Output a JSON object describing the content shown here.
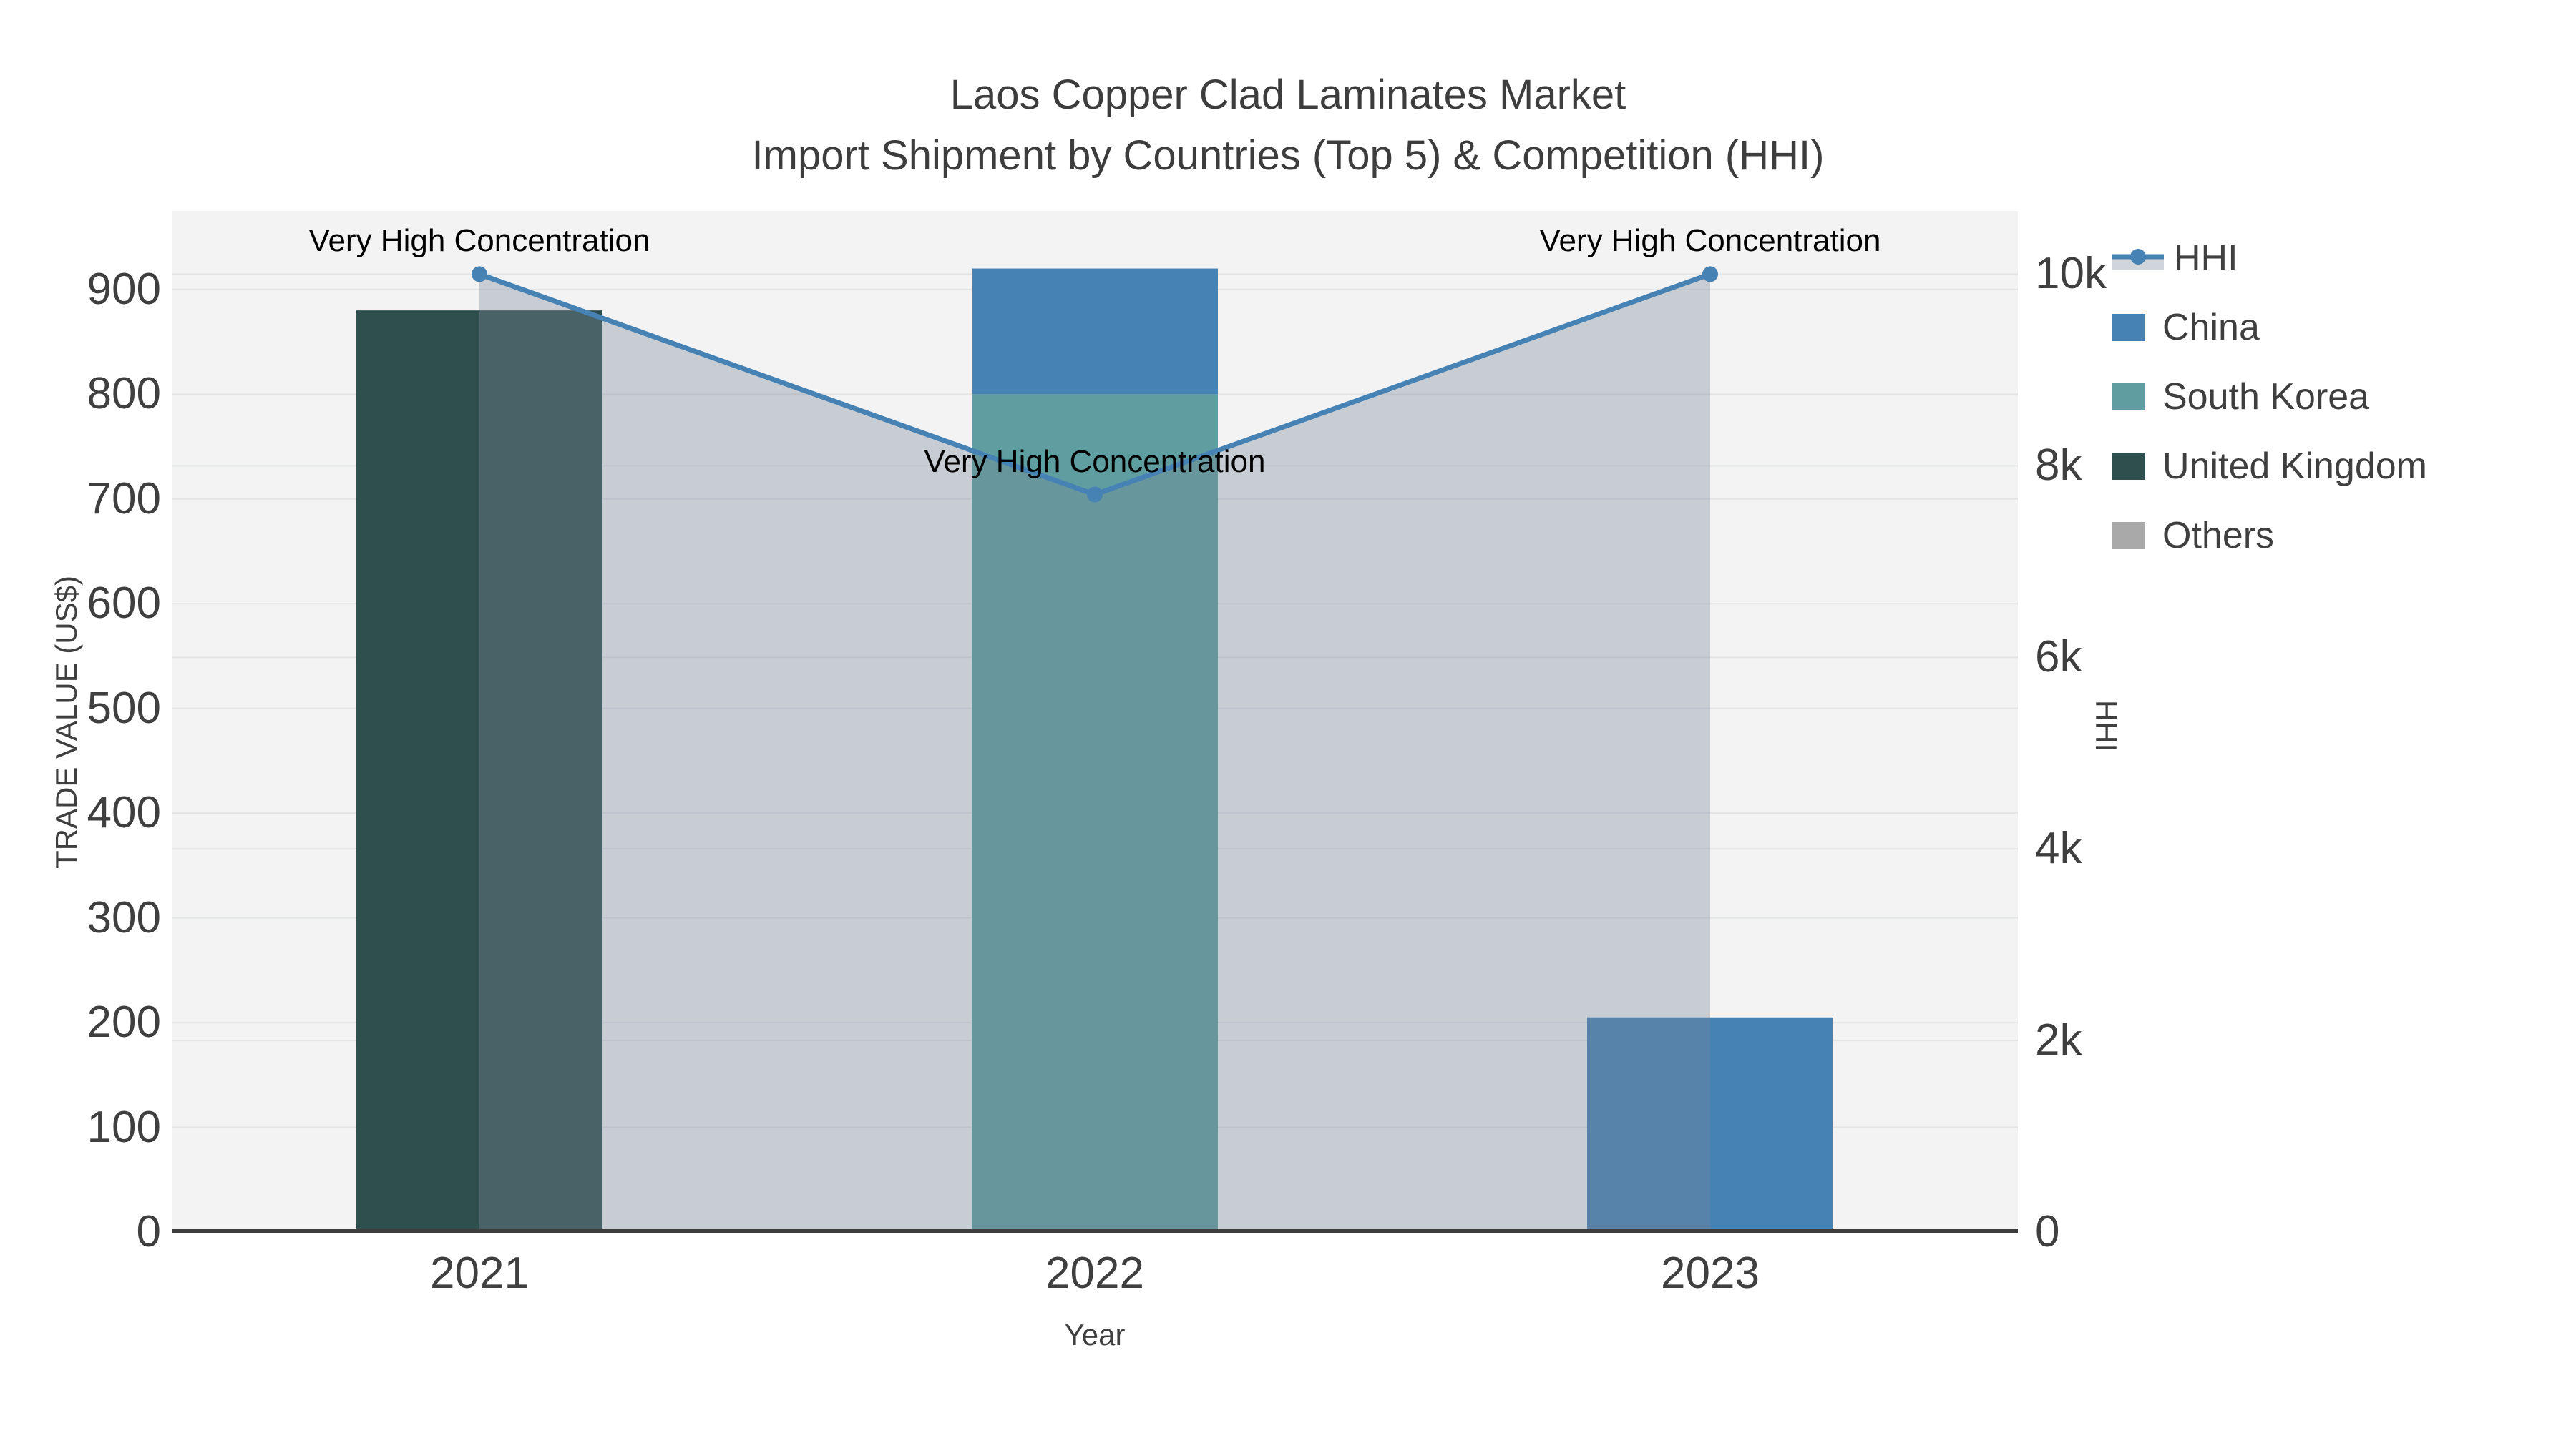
{
  "title": {
    "line1": "Laos Copper Clad Laminates Market",
    "line2": "Import Shipment by Countries (Top 5) & Competition (HHI)"
  },
  "colors": {
    "plot_bg": "#f3f3f4",
    "grid": "#e3e4e6",
    "axis_line": "#3d3d3d",
    "text": "#3f3f3f",
    "annotation_text": "#000000",
    "hhi_line": "#4682b4",
    "hhi_fill": "rgba(119,136,153,0.35)"
  },
  "chart_data": {
    "type": "bar",
    "bar_mode": "stack",
    "categories": [
      "2021",
      "2022",
      "2023"
    ],
    "series": [
      {
        "name": "HHI",
        "type": "line",
        "axis": "right",
        "color": "#4682b4",
        "fill": "rgba(119,136,153,0.35)",
        "values": [
          10000,
          7700,
          10000
        ]
      },
      {
        "name": "China",
        "type": "bar",
        "axis": "left",
        "color": "#4682b4",
        "values": [
          0,
          120,
          205
        ]
      },
      {
        "name": "South Korea",
        "type": "bar",
        "axis": "left",
        "color": "#5f9ea0",
        "values": [
          0,
          800,
          0
        ]
      },
      {
        "name": "United Kingdom",
        "type": "bar",
        "axis": "left",
        "color": "#2f4f4f",
        "values": [
          880,
          0,
          0
        ]
      },
      {
        "name": "Others",
        "type": "bar",
        "axis": "left",
        "color": "#a9a9a9",
        "values": [
          0,
          0,
          0
        ]
      }
    ],
    "stack_order_bottom_up": [
      "Others",
      "United Kingdom",
      "South Korea",
      "China"
    ],
    "x_axis": {
      "title": "Year",
      "tick_labels": [
        "2021",
        "2022",
        "2023"
      ]
    },
    "left_axis": {
      "title": "TRADE VALUE (US$)",
      "ticks": [
        0,
        100,
        200,
        300,
        400,
        500,
        600,
        700,
        800,
        900
      ],
      "range": [
        0,
        975
      ],
      "grid": true
    },
    "right_axis": {
      "title": "HHI",
      "ticks": [
        0,
        2000,
        4000,
        6000,
        8000,
        10000
      ],
      "tick_labels": [
        "0",
        "2k",
        "4k",
        "6k",
        "8k",
        "10k"
      ],
      "range": [
        0,
        10660
      ],
      "grid": true
    },
    "annotations": [
      {
        "text": "Very High Concentration",
        "category": "2021"
      },
      {
        "text": "Very High Concentration",
        "category": "2022"
      },
      {
        "text": "Very High Concentration",
        "category": "2023"
      }
    ],
    "legend": {
      "position": "right",
      "items": [
        "HHI",
        "China",
        "South Korea",
        "United Kingdom",
        "Others"
      ]
    }
  }
}
